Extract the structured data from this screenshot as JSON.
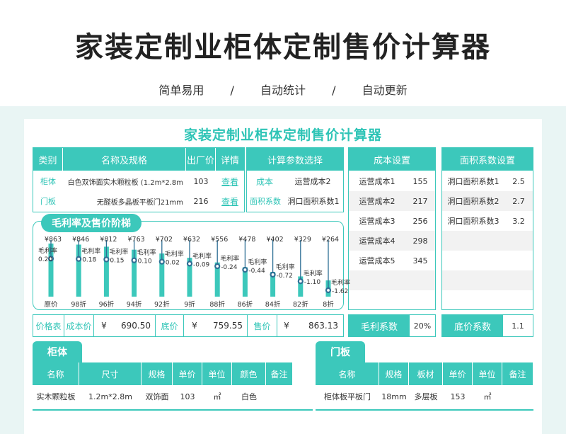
{
  "page": {
    "title": "家装定制业柜体定制售价计算器",
    "tags": [
      "简单易用",
      "自动统计",
      "自动更新"
    ],
    "separator": "/"
  },
  "sheet": {
    "title": "家装定制业柜体定制售价计算器",
    "product_table": {
      "headers": [
        "类别",
        "名称及规格",
        "出厂价",
        "详情"
      ],
      "rows": [
        {
          "category": "柜体",
          "name": "白色双饰面实木颗粒板 (1.2m*2.8m",
          "price": "103",
          "detail": "查看"
        },
        {
          "category": "门板",
          "name": "无醛板多晶板平板门21mm",
          "price": "216",
          "detail": "查看"
        }
      ]
    },
    "param_table": {
      "header": "计算参数选择",
      "rows": [
        {
          "label": "成本",
          "value": "运营成本2"
        },
        {
          "label": "面积系数",
          "value": "洞口面积系数1"
        }
      ]
    },
    "cost_table": {
      "header": "成本设置",
      "rows": [
        {
          "label": "运营成本1",
          "value": "155"
        },
        {
          "label": "运营成本2",
          "value": "217"
        },
        {
          "label": "运营成本3",
          "value": "256"
        },
        {
          "label": "运营成本4",
          "value": "298"
        },
        {
          "label": "运营成本5",
          "value": "345"
        }
      ],
      "footer_label": "毛利系数",
      "footer_value": "20%"
    },
    "area_table": {
      "header": "面积系数设置",
      "rows": [
        {
          "label": "洞口面积系数1",
          "value": "2.5"
        },
        {
          "label": "洞口面积系数2",
          "value": "2.7"
        },
        {
          "label": "洞口面积系数3",
          "value": "3.2"
        }
      ],
      "footer_label": "底价系数",
      "footer_value": "1.1"
    },
    "price_row": {
      "label": "价格表",
      "cost_label": "成本价",
      "cost_currency": "¥",
      "cost_value": "690.50",
      "base_label": "底价",
      "base_currency": "¥",
      "base_value": "759.55",
      "sale_label": "售价",
      "sale_currency": "¥",
      "sale_value": "863.13"
    },
    "cabinet": {
      "tab": "柜体",
      "headers": [
        "名称",
        "尺寸",
        "规格",
        "单价",
        "单位",
        "颜色",
        "备注"
      ],
      "row": [
        "实木颗粒板",
        "1.2m*2.8m",
        "双饰面",
        "103",
        "㎡",
        "白色",
        ""
      ]
    },
    "door": {
      "tab": "门板",
      "headers": [
        "名称",
        "规格",
        "板材",
        "单价",
        "单位",
        "备注"
      ],
      "row": [
        "柜体板平板门",
        "18mm",
        "多层板",
        "153",
        "㎡",
        ""
      ]
    }
  },
  "chart_data": {
    "type": "bar",
    "title": "毛利率及售价阶梯",
    "categories": [
      "原价",
      "98折",
      "96折",
      "94折",
      "92折",
      "9折",
      "88折",
      "86折",
      "84折",
      "82折",
      "8折"
    ],
    "price_labels": [
      "¥863",
      "¥846",
      "¥812",
      "¥763",
      "¥702",
      "¥632",
      "¥556",
      "¥478",
      "¥402",
      "¥329",
      "¥264"
    ],
    "values": [
      863,
      846,
      812,
      763,
      702,
      632,
      556,
      478,
      402,
      329,
      264
    ],
    "margin_label": "毛利率",
    "margins": [
      "0.20",
      "0.18",
      "0.15",
      "0.10",
      "0.02",
      "-0.09",
      "-0.24",
      "-0.44",
      "-0.72",
      "-1.10",
      "-1.62"
    ],
    "margin_values": [
      0.2,
      0.18,
      0.15,
      0.1,
      0.02,
      -0.09,
      -0.24,
      -0.44,
      -0.72,
      -1.1,
      -1.62
    ],
    "colors": {
      "bar": "#3cc8bb",
      "line": "#2e6f95"
    }
  }
}
